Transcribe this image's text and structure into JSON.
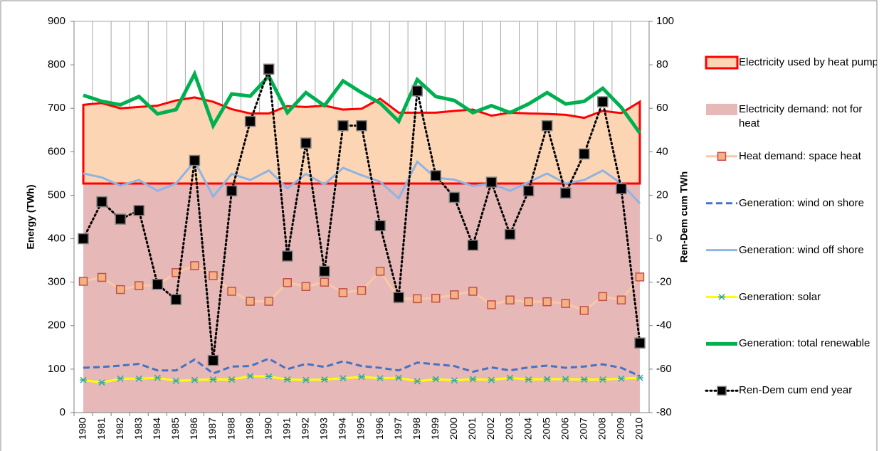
{
  "chart_data": {
    "type": "line",
    "ylabel": "Energy (TWh)",
    "y2label": "Ren-Dem cum TWh",
    "categories": [
      "1980",
      "1981",
      "1982",
      "1983",
      "1984",
      "1985",
      "1986",
      "1987",
      "1988",
      "1989",
      "1990",
      "1991",
      "1992",
      "1993",
      "1994",
      "1995",
      "1996",
      "1997",
      "1998",
      "1999",
      "2000",
      "2001",
      "2002",
      "2003",
      "2004",
      "2005",
      "2006",
      "2007",
      "2008",
      "2009",
      "2010"
    ],
    "ylim": [
      0,
      900
    ],
    "yticks": [
      0,
      100,
      200,
      300,
      400,
      500,
      600,
      700,
      800,
      900
    ],
    "y2lim": [
      -80,
      100
    ],
    "y2ticks": [
      -80,
      -60,
      -40,
      -20,
      0,
      20,
      40,
      60,
      80,
      100
    ],
    "grid": true,
    "legend": "right",
    "series": [
      {
        "name": "Electricity used by heat pump",
        "type": "area",
        "color": "#fcd5b5",
        "edge_color": "#ff0000",
        "values": [
          181,
          185,
          173,
          176,
          179,
          191,
          198,
          188,
          171,
          161,
          161,
          178,
          176,
          179,
          170,
          172,
          195,
          163,
          163,
          163,
          167,
          170,
          156,
          163,
          161,
          160,
          158,
          151,
          167,
          162,
          188
        ]
      },
      {
        "name": "Electricity demand: not for heat",
        "type": "area",
        "color": "#e6b9b8",
        "values": [
          527,
          527,
          527,
          527,
          527,
          527,
          527,
          527,
          527,
          527,
          527,
          527,
          527,
          527,
          527,
          527,
          527,
          527,
          527,
          527,
          527,
          527,
          527,
          527,
          527,
          527,
          527,
          527,
          527,
          527,
          527
        ]
      },
      {
        "name": "Heat demand: space heat",
        "type": "line",
        "color": "#fac8a4",
        "marker": "square",
        "marker_color": "#f4b183",
        "marker_edge": "#c0504d",
        "values": [
          302,
          311,
          283,
          292,
          293,
          322,
          338,
          315,
          279,
          256,
          256,
          299,
          290,
          300,
          276,
          281,
          325,
          262,
          262,
          263,
          271,
          279,
          248,
          259,
          255,
          255,
          251,
          235,
          267,
          259,
          312
        ]
      },
      {
        "name": "Generation: wind on shore",
        "type": "line",
        "color": "#4472c4",
        "dash": true,
        "values": [
          103,
          105,
          108,
          112,
          97,
          97,
          122,
          90,
          106,
          107,
          124,
          100,
          112,
          105,
          118,
          107,
          103,
          97,
          115,
          111,
          107,
          94,
          104,
          97,
          104,
          108,
          103,
          106,
          111,
          103,
          84
        ]
      },
      {
        "name": "Generation: wind off shore",
        "type": "line",
        "color": "#8eb4e3",
        "values": [
          550,
          541,
          522,
          535,
          510,
          527,
          578,
          497,
          549,
          535,
          557,
          516,
          549,
          525,
          563,
          546,
          531,
          493,
          577,
          540,
          536,
          521,
          527,
          510,
          530,
          550,
          527,
          535,
          557,
          527,
          481
        ]
      },
      {
        "name": "Generation: solar",
        "type": "line",
        "color": "#ffff00",
        "marker": "star",
        "marker_color": "#31a6a6",
        "values": [
          75,
          69,
          78,
          78,
          80,
          73,
          75,
          76,
          76,
          84,
          83,
          76,
          75,
          76,
          79,
          82,
          79,
          80,
          72,
          77,
          74,
          77,
          75,
          80,
          76,
          77,
          77,
          76,
          76,
          78,
          80
        ]
      },
      {
        "name": "Generation: total renewable",
        "type": "line",
        "color": "#00b050",
        "line_width": 5,
        "values": [
          730,
          716,
          708,
          727,
          687,
          697,
          779,
          660,
          733,
          728,
          774,
          690,
          736,
          706,
          763,
          736,
          712,
          670,
          766,
          727,
          718,
          690,
          706,
          690,
          710,
          736,
          710,
          716,
          746,
          702,
          643
        ]
      },
      {
        "name": "Ren-Dem cum end year",
        "type": "line",
        "axis": "y2",
        "color": "#000000",
        "dotted": true,
        "marker": "square",
        "marker_color": "#000000",
        "marker_edge": "#7f7f7f",
        "values": [
          0,
          17,
          9,
          13,
          -21,
          -28,
          36,
          -56,
          22,
          54,
          78,
          -8,
          44,
          -15,
          52,
          52,
          6,
          -27,
          68,
          29,
          19,
          -3,
          26,
          2,
          22,
          52,
          21,
          39,
          63,
          23,
          -48
        ]
      }
    ]
  }
}
